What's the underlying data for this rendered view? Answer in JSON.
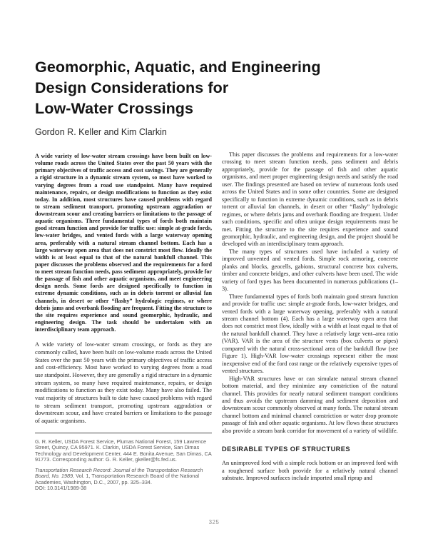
{
  "page": {
    "title": "Geomorphic, Aquatic, and Engineering\nDesign Considerations for\nLow-Water Crossings",
    "authors": "Gordon R. Keller and Kim Clarkin",
    "page_number": "325"
  },
  "abstract": {
    "text": "A wide variety of low-water stream crossings have been built on low-volume roads across the United States over the past 50 years with the primary objectives of traffic access and cost savings. They are generally a rigid structure in a dynamic stream system, so most have worked to varying degrees from a road use standpoint. Many have required maintenance, repairs, or design modifications to function as they exist today. In addition, most structures have caused problems with regard to stream sediment transport, promoting upstream aggradation or downstream scour and creating barriers or limitations to the passage of aquatic organisms. Three fundamental types of fords both maintain good stream function and provide for traffic use: simple at-grade fords, low-water bridges, and vented fords with a large waterway opening area, preferably with a natural stream channel bottom. Each has a large waterway open area that does not constrict most flow. Ideally the width is at least equal to that of the natural bankfull channel. This paper discusses the problems observed and the requirements for a ford to meet stream function needs, pass sediment appropriately, provide for the passage of fish and other aquatic organisms, and meet engineering design needs. Some fords are designed specifically to function in extreme dynamic conditions, such as in debris torrent or alluvial fan channels, in desert or other “flashy” hydrologic regimes, or where debris jams and overbank flooding are frequent. Fitting the structure to the site requires experience and sound geomorphic, hydraulic, and engineering design. The task should be undertaken with an interdisciplinary team approach."
  },
  "left_column": {
    "intro": "A wide variety of low-water stream crossings, or fords as they are commonly called, have been built on low-volume roads across the United States over the past 50 years with the primary objectives of traffic access and cost-efficiency. Most have worked to varying degrees from a road use standpoint. However, they are generally a rigid structure in a dynamic stream system, so many have required maintenance, repairs, or design modifications to function as they exist today. Many have also failed. The vast majority of structures built to date have caused problems with regard to stream sediment transport, promoting upstream aggradation or downstream scour, and have created barriers or limitations to the passage of aquatic organisms."
  },
  "footnote": {
    "affiliation": "G. R. Keller, USDA Forest Service, Plumas National Forest, 159 Lawrence Street, Quincy, CA 95971. K. Clarkin, USDA Forest Service, San Dimas Technology and Development Center, 444 E. Bonita Avenue, San Dimas, CA 91773. Corresponding author: G. R. Keller, gkeller@fs.fed.us.",
    "citation_italic": "Transportation Research Record: Journal of the Transportation Research Board, No. 1989,",
    "citation_rest": " Vol. 1, Transportation Research Board of the National Academies, Washington, D.C., 2007, pp. 325–334.",
    "doi": "DOI: 10.3141/1989-38"
  },
  "right_column": {
    "paragraphs": [
      "This paper discusses the problems and requirements for a low-water crossing to meet stream function needs, pass sediment and debris appropriately, provide for the passage of fish and other aquatic organisms, and meet proper engineering design needs and satisfy the road user. The findings presented are based on review of numerous fords used across the United States and in some other countries. Some are designed specifically to function in extreme dynamic conditions, such as in debris torrent or alluvial fan channels, in desert or other “flashy” hydrologic regimes, or where debris jams and overbank flooding are frequent. Under such conditions, specific and often unique design requirements must be met. Fitting the structure to the site requires experience and sound geomorphic, hydraulic, and engineering design, and the project should be developed with an interdisciplinary team approach.",
      "The many types of structures used have included a variety of improved unvented and vented fords. Simple rock armoring, concrete planks and blocks, geocells, gabions, structural concrete box culverts, timber and concrete bridges, and other culverts have been used. The wide variety of ford types has been documented in numerous publications (1–3).",
      "Three fundamental types of fords both maintain good stream function and provide for traffic use: simple at-grade fords, low-water bridges, and vented fords with a large waterway opening, preferably with a natural stream channel bottom (4). Each has a large waterway open area that does not constrict most flow, ideally with a width at least equal to that of the natural bankfull channel. They have a relatively large vent–area ratio (VAR). VAR is the area of the structure vents (box culverts or pipes) compared with the natural cross-sectional area of the bankfull flow (see Figure 1). High-VAR low-water crossings represent either the most inexpensive end of the ford cost range or the relatively expensive types of vented structures.",
      "High-VAR structures have or can simulate natural stream channel bottom material, and they minimize any constriction of the natural channel. This provides for nearly natural sediment transport conditions and thus avoids the upstream damming and sediment deposition and downstream scour commonly observed at many fords. The natural stream channel bottom and minimal channel constriction or water drop promote passage of fish and other aquatic organisms. At low flows these structures also provide a stream bank corridor for movement of a variety of wildlife."
    ],
    "section_heading": "DESIRABLE TYPES OF STRUCTURES",
    "section_paragraph": "An unimproved ford with a simple rock bottom or an improved ford with a roughened surface both provide for a relatively natural channel substrate. Improved surfaces include imported small riprap and"
  }
}
